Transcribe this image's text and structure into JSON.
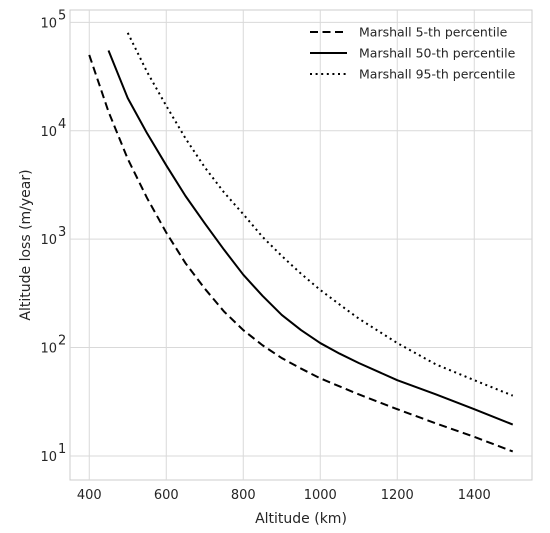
{
  "chart_data": {
    "type": "line",
    "xlabel": "Altitude (km)",
    "ylabel": "Altitude loss (m/year)",
    "xlim": [
      350,
      1550
    ],
    "ylim": [
      6,
      130000
    ],
    "yscale": "log",
    "grid": true,
    "legend_position": "top-right",
    "x_ticks": [
      400,
      600,
      800,
      1000,
      1200,
      1400
    ],
    "x_tick_labels": [
      "400",
      "600",
      "800",
      "1000",
      "1200",
      "1400"
    ],
    "y_ticks": [
      10,
      100,
      1000,
      10000,
      100000
    ],
    "y_tick_labels": [
      {
        "base": "10",
        "exp": "1"
      },
      {
        "base": "10",
        "exp": "2"
      },
      {
        "base": "10",
        "exp": "3"
      },
      {
        "base": "10",
        "exp": "4"
      },
      {
        "base": "10",
        "exp": "5"
      }
    ],
    "series": [
      {
        "name": "Marshall 5-th percentile",
        "style": "dashed",
        "x": [
          400,
          450,
          500,
          550,
          600,
          650,
          700,
          750,
          800,
          850,
          900,
          950,
          1000,
          1100,
          1200,
          1300,
          1400,
          1500
        ],
        "y": [
          50000,
          15000,
          5500,
          2400,
          1150,
          600,
          350,
          215,
          145,
          105,
          80,
          64,
          52,
          37,
          27,
          20,
          15,
          11
        ]
      },
      {
        "name": "Marshall 50-th percentile",
        "style": "solid",
        "x": [
          450,
          500,
          550,
          600,
          650,
          700,
          750,
          800,
          850,
          900,
          950,
          1000,
          1050,
          1100,
          1200,
          1300,
          1400,
          1500
        ],
        "y": [
          55000,
          20000,
          9500,
          4800,
          2500,
          1400,
          800,
          470,
          300,
          200,
          145,
          110,
          88,
          72,
          50,
          37,
          27,
          19.5
        ]
      },
      {
        "name": "Marshall 95-th percentile",
        "style": "dotted",
        "x": [
          500,
          550,
          600,
          650,
          700,
          750,
          800,
          850,
          900,
          950,
          1000,
          1050,
          1100,
          1200,
          1300,
          1400,
          1500
        ],
        "y": [
          80000,
          35000,
          17000,
          8500,
          4600,
          2700,
          1700,
          1050,
          700,
          480,
          340,
          250,
          185,
          110,
          70,
          50,
          36
        ]
      }
    ]
  },
  "colors": {
    "line": "#000000",
    "grid": "#d9d9d9",
    "axes_edge": "#cccccc",
    "background": "#ffffff"
  }
}
